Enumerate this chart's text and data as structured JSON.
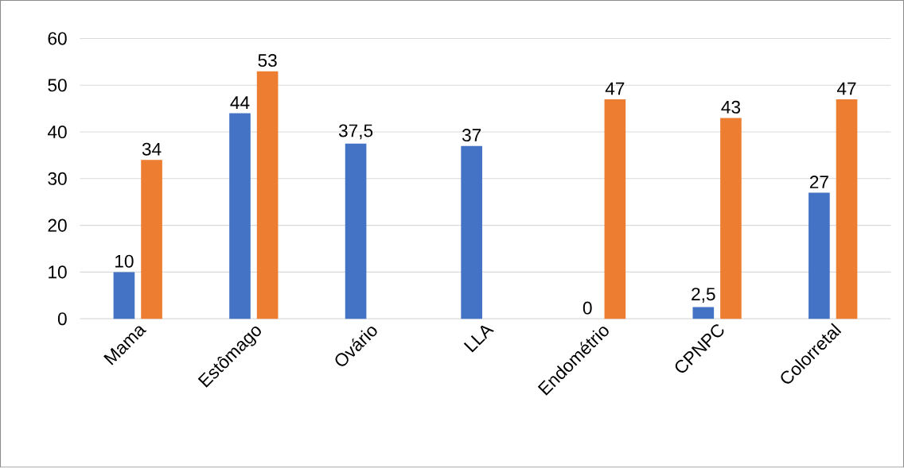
{
  "chart_data": {
    "type": "bar",
    "categories": [
      "Mama",
      "Estômago",
      "Ovário",
      "LLA",
      "Endométrio",
      "CPNPC",
      "Colorretal"
    ],
    "series": [
      {
        "color": "#4472c4",
        "values": [
          10,
          44,
          37.5,
          37,
          0,
          2.5,
          27
        ],
        "value_labels": [
          "10",
          "44",
          "37,5",
          "37",
          "0",
          "2,5",
          "27"
        ]
      },
      {
        "color": "#ed7d31",
        "values": [
          34,
          53,
          null,
          null,
          47,
          43,
          47
        ],
        "value_labels": [
          "34",
          "53",
          null,
          null,
          "47",
          "43",
          "47"
        ]
      }
    ],
    "ylim": [
      0,
      60
    ],
    "yticks": [
      0,
      10,
      20,
      30,
      40,
      50,
      60
    ],
    "grid": "y"
  }
}
